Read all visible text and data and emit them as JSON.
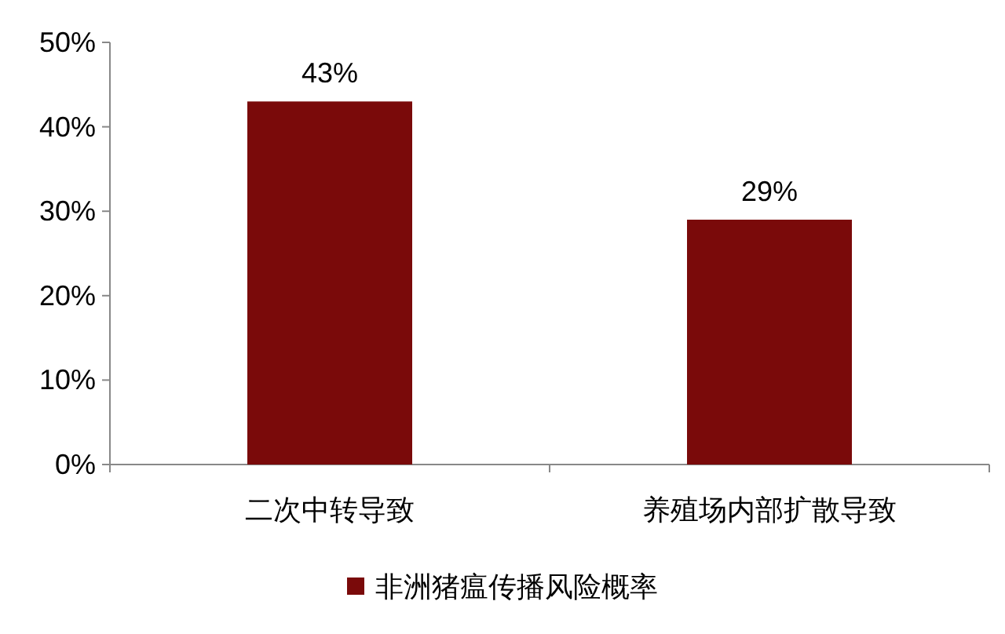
{
  "chart_data": {
    "type": "bar",
    "categories": [
      "二次中转导致",
      "养殖场内部扩散导致"
    ],
    "series": [
      {
        "name": "非洲猪瘟传播风险概率",
        "color": "#7a0a0a",
        "values": [
          43,
          29
        ],
        "value_labels": [
          "43%",
          "29%"
        ]
      }
    ],
    "ylim": [
      0,
      50
    ],
    "yticks": [
      {
        "value": 0,
        "label": "0%"
      },
      {
        "value": 10,
        "label": "10%"
      },
      {
        "value": 20,
        "label": "20%"
      },
      {
        "value": 30,
        "label": "30%"
      },
      {
        "value": 40,
        "label": "40%"
      },
      {
        "value": 50,
        "label": "50%"
      }
    ],
    "legend": "bottom"
  }
}
